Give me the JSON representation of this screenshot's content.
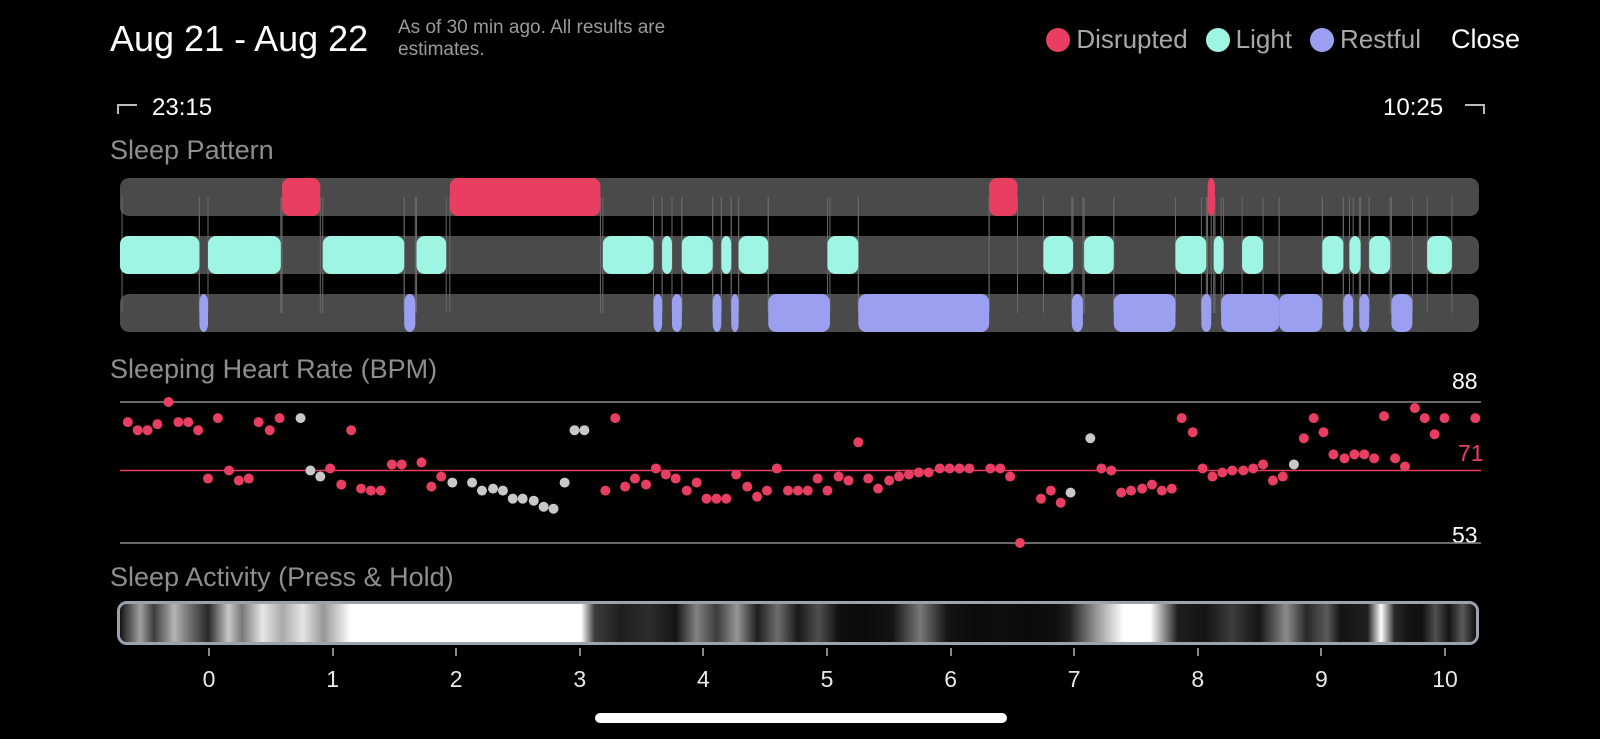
{
  "header": {
    "title": "Aug 21 - Aug 22",
    "subtitle": "As of 30 min ago. All results are estimates.",
    "close_label": "Close",
    "legend": [
      {
        "label": "Disrupted",
        "color": "#e83e61"
      },
      {
        "label": "Light",
        "color": "#9ef5e4"
      },
      {
        "label": "Restful",
        "color": "#9b9ff0"
      }
    ]
  },
  "time_range": {
    "start": "23:15",
    "end": "10:25"
  },
  "sleep_pattern": {
    "label": "Sleep Pattern",
    "track_color": "#4a4a4a",
    "rows": [
      {
        "state": "Disrupted",
        "color": "#e83e61",
        "segments": [
          [
            1.32,
            1.63
          ],
          [
            2.68,
            3.9
          ],
          [
            7.05,
            7.28
          ],
          [
            8.82,
            8.88
          ]
        ]
      },
      {
        "state": "Light",
        "color": "#9ef5e4",
        "segments": [
          [
            0.0,
            0.65
          ],
          [
            0.72,
            1.31
          ],
          [
            1.65,
            2.31
          ],
          [
            2.41,
            2.65
          ],
          [
            3.92,
            4.33
          ],
          [
            4.4,
            4.48
          ],
          [
            4.56,
            4.81
          ],
          [
            4.88,
            4.96
          ],
          [
            5.02,
            5.26
          ],
          [
            5.74,
            5.99
          ],
          [
            7.49,
            7.73
          ],
          [
            7.82,
            8.06
          ],
          [
            8.56,
            8.81
          ],
          [
            8.87,
            8.95
          ],
          [
            9.1,
            9.27
          ],
          [
            9.75,
            9.92
          ],
          [
            9.97,
            10.06
          ],
          [
            10.13,
            10.3
          ],
          [
            10.6,
            10.8
          ]
        ]
      },
      {
        "state": "Restful",
        "color": "#9b9ff0",
        "segments": [
          [
            0.65,
            0.72
          ],
          [
            2.31,
            2.4
          ],
          [
            4.33,
            4.4
          ],
          [
            4.48,
            4.56
          ],
          [
            4.81,
            4.88
          ],
          [
            4.96,
            5.02
          ],
          [
            5.26,
            5.76
          ],
          [
            5.99,
            7.05
          ],
          [
            7.72,
            7.81
          ],
          [
            8.06,
            8.56
          ],
          [
            8.77,
            8.85
          ],
          [
            8.93,
            9.4
          ],
          [
            9.4,
            9.75
          ],
          [
            9.92,
            10.0
          ],
          [
            10.05,
            10.13
          ],
          [
            10.31,
            10.48
          ]
        ]
      }
    ]
  },
  "heart_rate": {
    "label": "Sleeping Heart Rate (BPM)",
    "max": 88,
    "avg": 71,
    "min": 53,
    "points": [
      {
        "t": -0.65,
        "v": 83,
        "c": "r"
      },
      {
        "t": -0.57,
        "v": 81,
        "c": "r"
      },
      {
        "t": -0.49,
        "v": 81,
        "c": "r"
      },
      {
        "t": -0.41,
        "v": 82.5,
        "c": "r"
      },
      {
        "t": -0.32,
        "v": 88,
        "c": "r"
      },
      {
        "t": -0.24,
        "v": 83,
        "c": "r"
      },
      {
        "t": -0.16,
        "v": 83,
        "c": "r"
      },
      {
        "t": -0.08,
        "v": 81,
        "c": "r"
      },
      {
        "t": 0.0,
        "v": 69,
        "c": "r"
      },
      {
        "t": 0.08,
        "v": 84,
        "c": "r"
      },
      {
        "t": 0.17,
        "v": 71,
        "c": "r"
      },
      {
        "t": 0.25,
        "v": 68.5,
        "c": "r"
      },
      {
        "t": 0.33,
        "v": 69,
        "c": "r"
      },
      {
        "t": 0.41,
        "v": 83,
        "c": "r"
      },
      {
        "t": 0.5,
        "v": 81,
        "c": "r"
      },
      {
        "t": 0.58,
        "v": 84,
        "c": "r"
      },
      {
        "t": 0.75,
        "v": 84,
        "c": "g"
      },
      {
        "t": 0.83,
        "v": 71,
        "c": "g"
      },
      {
        "t": 0.91,
        "v": 69.5,
        "c": "g"
      },
      {
        "t": 0.99,
        "v": 71.5,
        "c": "r"
      },
      {
        "t": 1.08,
        "v": 67.5,
        "c": "r"
      },
      {
        "t": 1.16,
        "v": 81,
        "c": "r"
      },
      {
        "t": 1.24,
        "v": 66.5,
        "c": "r"
      },
      {
        "t": 1.32,
        "v": 66,
        "c": "r"
      },
      {
        "t": 1.4,
        "v": 66,
        "c": "r"
      },
      {
        "t": 1.49,
        "v": 72.5,
        "c": "r"
      },
      {
        "t": 1.57,
        "v": 72.5,
        "c": "r"
      },
      {
        "t": 1.73,
        "v": 73,
        "c": "r"
      },
      {
        "t": 1.81,
        "v": 67,
        "c": "r"
      },
      {
        "t": 1.89,
        "v": 69.5,
        "c": "r"
      },
      {
        "t": 1.98,
        "v": 68,
        "c": "g"
      },
      {
        "t": 2.14,
        "v": 68,
        "c": "g"
      },
      {
        "t": 2.22,
        "v": 66,
        "c": "g"
      },
      {
        "t": 2.31,
        "v": 66.5,
        "c": "g"
      },
      {
        "t": 2.39,
        "v": 66,
        "c": "g"
      },
      {
        "t": 2.47,
        "v": 64,
        "c": "g"
      },
      {
        "t": 2.55,
        "v": 64,
        "c": "g"
      },
      {
        "t": 2.64,
        "v": 63.5,
        "c": "g"
      },
      {
        "t": 2.72,
        "v": 62,
        "c": "g"
      },
      {
        "t": 2.8,
        "v": 61.5,
        "c": "g"
      },
      {
        "t": 2.89,
        "v": 68,
        "c": "g"
      },
      {
        "t": 2.97,
        "v": 81,
        "c": "g"
      },
      {
        "t": 3.05,
        "v": 81,
        "c": "g"
      },
      {
        "t": 3.22,
        "v": 66,
        "c": "r"
      },
      {
        "t": 3.3,
        "v": 84,
        "c": "r"
      },
      {
        "t": 3.38,
        "v": 67,
        "c": "r"
      },
      {
        "t": 3.46,
        "v": 69,
        "c": "r"
      },
      {
        "t": 3.55,
        "v": 67.5,
        "c": "r"
      },
      {
        "t": 3.63,
        "v": 71.5,
        "c": "r"
      },
      {
        "t": 3.71,
        "v": 70,
        "c": "r"
      },
      {
        "t": 3.79,
        "v": 69,
        "c": "r"
      },
      {
        "t": 3.88,
        "v": 66,
        "c": "r"
      },
      {
        "t": 3.96,
        "v": 68,
        "c": "r"
      },
      {
        "t": 4.04,
        "v": 64,
        "c": "r"
      },
      {
        "t": 4.12,
        "v": 64,
        "c": "r"
      },
      {
        "t": 4.2,
        "v": 64,
        "c": "r"
      },
      {
        "t": 4.28,
        "v": 70,
        "c": "r"
      },
      {
        "t": 4.37,
        "v": 67,
        "c": "r"
      },
      {
        "t": 4.45,
        "v": 64.5,
        "c": "r"
      },
      {
        "t": 4.53,
        "v": 66,
        "c": "r"
      },
      {
        "t": 4.61,
        "v": 71.5,
        "c": "r"
      },
      {
        "t": 4.7,
        "v": 66,
        "c": "r"
      },
      {
        "t": 4.78,
        "v": 66,
        "c": "r"
      },
      {
        "t": 4.86,
        "v": 66,
        "c": "r"
      },
      {
        "t": 4.94,
        "v": 69,
        "c": "r"
      },
      {
        "t": 5.02,
        "v": 66,
        "c": "r"
      },
      {
        "t": 5.11,
        "v": 69.5,
        "c": "r"
      },
      {
        "t": 5.19,
        "v": 68.5,
        "c": "r"
      },
      {
        "t": 5.27,
        "v": 78,
        "c": "r"
      },
      {
        "t": 5.35,
        "v": 69,
        "c": "r"
      },
      {
        "t": 5.43,
        "v": 66.5,
        "c": "r"
      },
      {
        "t": 5.52,
        "v": 68.5,
        "c": "r"
      },
      {
        "t": 5.6,
        "v": 69.5,
        "c": "r"
      },
      {
        "t": 5.68,
        "v": 70,
        "c": "r"
      },
      {
        "t": 5.76,
        "v": 70.5,
        "c": "r"
      },
      {
        "t": 5.84,
        "v": 70.5,
        "c": "r"
      },
      {
        "t": 5.93,
        "v": 71.5,
        "c": "r"
      },
      {
        "t": 6.01,
        "v": 71.5,
        "c": "r"
      },
      {
        "t": 6.09,
        "v": 71.5,
        "c": "r"
      },
      {
        "t": 6.17,
        "v": 71.5,
        "c": "r"
      },
      {
        "t": 6.34,
        "v": 71.5,
        "c": "r"
      },
      {
        "t": 6.42,
        "v": 71.5,
        "c": "r"
      },
      {
        "t": 6.5,
        "v": 69.5,
        "c": "r"
      },
      {
        "t": 6.58,
        "v": 53,
        "c": "r"
      },
      {
        "t": 6.75,
        "v": 64,
        "c": "r"
      },
      {
        "t": 6.83,
        "v": 66,
        "c": "r"
      },
      {
        "t": 6.91,
        "v": 63,
        "c": "r"
      },
      {
        "t": 6.99,
        "v": 65.5,
        "c": "g"
      },
      {
        "t": 7.15,
        "v": 79,
        "c": "g"
      },
      {
        "t": 7.24,
        "v": 71.5,
        "c": "r"
      },
      {
        "t": 7.32,
        "v": 71,
        "c": "r"
      },
      {
        "t": 7.4,
        "v": 65.5,
        "c": "r"
      },
      {
        "t": 7.48,
        "v": 66,
        "c": "r"
      },
      {
        "t": 7.57,
        "v": 66.5,
        "c": "r"
      },
      {
        "t": 7.65,
        "v": 67.5,
        "c": "r"
      },
      {
        "t": 7.73,
        "v": 66,
        "c": "r"
      },
      {
        "t": 7.81,
        "v": 66.5,
        "c": "r"
      },
      {
        "t": 7.89,
        "v": 84,
        "c": "r"
      },
      {
        "t": 7.98,
        "v": 80.5,
        "c": "r"
      },
      {
        "t": 8.06,
        "v": 71.5,
        "c": "r"
      },
      {
        "t": 8.14,
        "v": 69.5,
        "c": "r"
      },
      {
        "t": 8.22,
        "v": 70.5,
        "c": "r"
      },
      {
        "t": 8.3,
        "v": 71,
        "c": "r"
      },
      {
        "t": 8.39,
        "v": 71,
        "c": "r"
      },
      {
        "t": 8.47,
        "v": 71.5,
        "c": "r"
      },
      {
        "t": 8.55,
        "v": 72.5,
        "c": "r"
      },
      {
        "t": 8.63,
        "v": 68.5,
        "c": "r"
      },
      {
        "t": 8.71,
        "v": 69.5,
        "c": "r"
      },
      {
        "t": 8.8,
        "v": 72.5,
        "c": "g"
      },
      {
        "t": 8.88,
        "v": 79,
        "c": "r"
      },
      {
        "t": 8.96,
        "v": 84,
        "c": "r"
      },
      {
        "t": 9.04,
        "v": 80.5,
        "c": "r"
      },
      {
        "t": 9.12,
        "v": 75,
        "c": "r"
      },
      {
        "t": 9.21,
        "v": 74,
        "c": "r"
      },
      {
        "t": 9.29,
        "v": 75,
        "c": "r"
      },
      {
        "t": 9.37,
        "v": 75,
        "c": "r"
      },
      {
        "t": 9.45,
        "v": 74,
        "c": "r"
      },
      {
        "t": 9.53,
        "v": 84.5,
        "c": "r"
      },
      {
        "t": 9.62,
        "v": 74,
        "c": "r"
      },
      {
        "t": 9.7,
        "v": 72,
        "c": "r"
      },
      {
        "t": 9.78,
        "v": 86.5,
        "c": "r"
      },
      {
        "t": 9.86,
        "v": 84,
        "c": "r"
      },
      {
        "t": 9.94,
        "v": 80,
        "c": "r"
      },
      {
        "t": 10.02,
        "v": 84,
        "c": "r"
      },
      {
        "t": 10.27,
        "v": 84,
        "c": "r"
      }
    ]
  },
  "sleep_activity": {
    "label": "Sleep Activity (Press & Hold)",
    "hour_ticks": [
      "0",
      "1",
      "2",
      "3",
      "4",
      "5",
      "6",
      "7",
      "8",
      "9",
      "10"
    ]
  }
}
